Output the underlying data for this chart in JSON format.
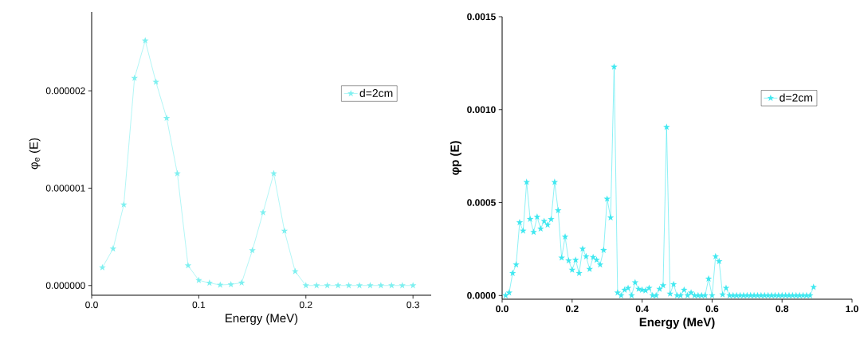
{
  "chart_data": [
    {
      "type": "line",
      "xlabel": "Energy (MeV)",
      "ylabel": "φ$_{e}$ (E)",
      "marker": "star",
      "line_style": "solid",
      "legend": "top right",
      "grid": false,
      "xlim": [
        0,
        0.317
      ],
      "ylim": [
        -1e-07,
        2.81e-06
      ],
      "xticks": [
        {
          "value": 0,
          "label": "0.0"
        },
        {
          "value": 0.1,
          "label": "0.1"
        },
        {
          "value": 0.2,
          "label": "0.2"
        },
        {
          "value": 0.3,
          "label": "0.3"
        }
      ],
      "yticks": [
        {
          "value": 0,
          "label": "0.000000"
        },
        {
          "value": 1e-06,
          "label": "0.000001"
        },
        {
          "value": 2e-06,
          "label": "0.000002"
        }
      ],
      "x": [
        0.01,
        0.02,
        0.03,
        0.04,
        0.05,
        0.06,
        0.07,
        0.08,
        0.09,
        0.1,
        0.11,
        0.12,
        0.13,
        0.14,
        0.15,
        0.16,
        0.17,
        0.18,
        0.19,
        0.2,
        0.21,
        0.22,
        0.23,
        0.24,
        0.25,
        0.26,
        0.27,
        0.28,
        0.29,
        0.3
      ],
      "series": [
        {
          "name": "d=2cm",
          "color": "#7ff0f0",
          "values": [
            1.85e-07,
            3.78e-07,
            8.3e-07,
            2.13e-06,
            2.515e-06,
            2.09e-06,
            1.72e-06,
            1.15e-06,
            2.05e-07,
            5.4e-08,
            2.6e-08,
            6e-09,
            1.1e-08,
            2.8e-08,
            3.6e-07,
            7.5e-07,
            1.15e-06,
            5.6e-07,
            1.45e-07,
            0,
            0,
            0,
            0,
            0,
            0,
            0,
            0,
            0,
            0,
            0
          ]
        }
      ]
    },
    {
      "type": "line",
      "xlabel": "Energy (MeV)",
      "ylabel": "φp (E)",
      "marker": "star",
      "line_style": "solid",
      "legend": "top right",
      "grid": false,
      "xlim": [
        0,
        1
      ],
      "ylim": [
        -2e-05,
        0.0015
      ],
      "xticks": [
        {
          "value": 0,
          "label": "0.0"
        },
        {
          "value": 0.2,
          "label": "0.2"
        },
        {
          "value": 0.4,
          "label": "0.4"
        },
        {
          "value": 0.6,
          "label": "0.6"
        },
        {
          "value": 0.8,
          "label": "0.8"
        },
        {
          "value": 1,
          "label": "1.0"
        }
      ],
      "yticks": [
        {
          "value": 0,
          "label": "0.0000"
        },
        {
          "value": 0.0005,
          "label": "0.0005"
        },
        {
          "value": 0.001,
          "label": "0.0010"
        },
        {
          "value": 0.0015,
          "label": "0.0015"
        }
      ],
      "x": [
        0.01,
        0.02,
        0.03,
        0.04,
        0.05,
        0.06,
        0.07,
        0.08,
        0.09,
        0.1,
        0.11,
        0.12,
        0.13,
        0.14,
        0.15,
        0.16,
        0.17,
        0.18,
        0.19,
        0.2,
        0.21,
        0.22,
        0.23,
        0.24,
        0.25,
        0.26,
        0.27,
        0.28,
        0.29,
        0.3,
        0.31,
        0.32,
        0.33,
        0.34,
        0.35,
        0.36,
        0.37,
        0.38,
        0.39,
        0.4,
        0.41,
        0.42,
        0.43,
        0.44,
        0.45,
        0.46,
        0.47,
        0.48,
        0.49,
        0.5,
        0.51,
        0.52,
        0.53,
        0.54,
        0.55,
        0.56,
        0.57,
        0.58,
        0.59,
        0.6,
        0.61,
        0.62,
        0.63,
        0.64,
        0.65,
        0.66,
        0.67,
        0.68,
        0.69,
        0.7,
        0.71,
        0.72,
        0.73,
        0.74,
        0.75,
        0.76,
        0.77,
        0.78,
        0.79,
        0.8,
        0.81,
        0.82,
        0.83,
        0.84,
        0.85,
        0.86,
        0.87,
        0.88,
        0.89
      ],
      "series": [
        {
          "name": "d=2cm",
          "color": "#40e8f0",
          "values": [
            0,
            1.5e-05,
            0.00012,
            0.000166,
            0.000393,
            0.000348,
            0.00061,
            0.000411,
            0.000341,
            0.000423,
            0.000359,
            0.0004,
            0.00038,
            0.00041,
            0.00061,
            0.000458,
            0.000203,
            0.000316,
            0.000188,
            0.000138,
            0.000191,
            0.00012,
            0.000251,
            0.00021,
            0.000142,
            0.000206,
            0.000191,
            0.000166,
            0.000244,
            0.00052,
            0.000419,
            0.00123,
            1.5e-05,
            0,
            3e-05,
            4e-05,
            0,
            7e-05,
            3.5e-05,
            3e-05,
            2.7e-05,
            4e-05,
            0,
            0,
            3.5e-05,
            5.4e-05,
            0.000906,
            9e-06,
            6e-05,
            0,
            0,
            3e-05,
            0,
            1.5e-05,
            0,
            0,
            0,
            0,
            9e-05,
            0,
            0.00021,
            0.000184,
            5e-06,
            4e-05,
            0,
            0,
            0,
            0,
            0,
            0,
            0,
            0,
            0,
            0,
            0,
            0,
            0,
            0,
            0,
            0,
            0,
            0,
            0,
            0,
            0,
            0,
            0,
            0,
            4.5e-05
          ]
        }
      ]
    }
  ]
}
